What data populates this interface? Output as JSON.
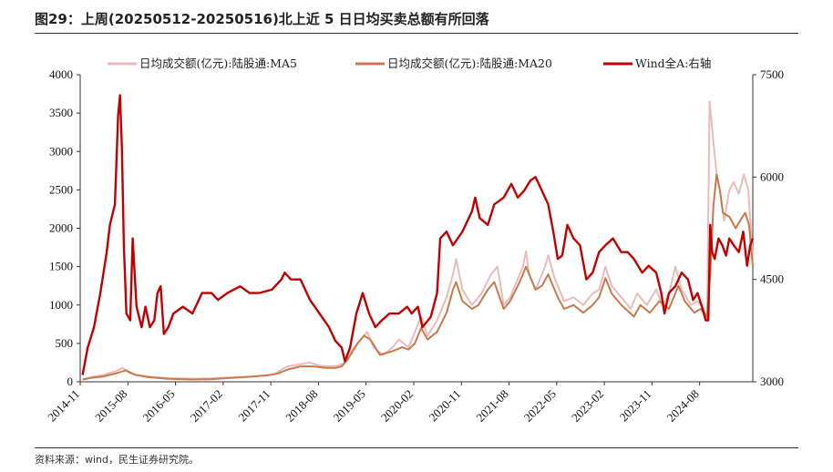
{
  "header": {
    "title": "图29：上周(20250512-20250516)北上近 5 日日均买卖总额有所回落"
  },
  "footer": {
    "source": "资料来源：wind，民生证券研究院。"
  },
  "chart_data": {
    "type": "line",
    "legend_position": "top",
    "grid": false,
    "x_ticks": [
      "2014-11",
      "2015-08",
      "2016-05",
      "2017-02",
      "2017-11",
      "2018-08",
      "2019-05",
      "2020-02",
      "2020-11",
      "2021-08",
      "2022-05",
      "2023-02",
      "2023-11",
      "2024-08"
    ],
    "y_left": {
      "ticks": [
        "0",
        "500",
        "1000",
        "1500",
        "2000",
        "2500",
        "3000",
        "3500",
        "4000"
      ],
      "range": [
        0,
        4000
      ]
    },
    "y_right": {
      "ticks": [
        "3000",
        "4500",
        "6000",
        "7500"
      ],
      "range": [
        3000,
        7500
      ]
    },
    "x_range": [
      2014.833,
      2025.42
    ],
    "series": [
      {
        "name": "日均成交额(亿元):陆股通:MA5",
        "axis": "left",
        "color": "#eab9b9",
        "points": [
          [
            2014.87,
            30
          ],
          [
            2015.0,
            60
          ],
          [
            2015.2,
            90
          ],
          [
            2015.4,
            140
          ],
          [
            2015.5,
            180
          ],
          [
            2015.6,
            120
          ],
          [
            2015.7,
            90
          ],
          [
            2015.9,
            70
          ],
          [
            2016.0,
            60
          ],
          [
            2016.3,
            45
          ],
          [
            2016.6,
            40
          ],
          [
            2016.9,
            45
          ],
          [
            2017.0,
            50
          ],
          [
            2017.3,
            60
          ],
          [
            2017.6,
            70
          ],
          [
            2017.9,
            100
          ],
          [
            2018.0,
            160
          ],
          [
            2018.1,
            200
          ],
          [
            2018.3,
            230
          ],
          [
            2018.45,
            250
          ],
          [
            2018.6,
            210
          ],
          [
            2018.75,
            200
          ],
          [
            2018.9,
            210
          ],
          [
            2019.0,
            250
          ],
          [
            2019.1,
            400
          ],
          [
            2019.25,
            550
          ],
          [
            2019.35,
            650
          ],
          [
            2019.45,
            450
          ],
          [
            2019.6,
            350
          ],
          [
            2019.75,
            450
          ],
          [
            2019.85,
            550
          ],
          [
            2020.0,
            450
          ],
          [
            2020.1,
            650
          ],
          [
            2020.2,
            850
          ],
          [
            2020.3,
            600
          ],
          [
            2020.45,
            800
          ],
          [
            2020.6,
            1100
          ],
          [
            2020.7,
            1400
          ],
          [
            2020.75,
            1600
          ],
          [
            2020.85,
            1200
          ],
          [
            2021.0,
            1000
          ],
          [
            2021.15,
            1150
          ],
          [
            2021.3,
            1400
          ],
          [
            2021.4,
            1500
          ],
          [
            2021.5,
            1000
          ],
          [
            2021.6,
            1100
          ],
          [
            2021.7,
            1300
          ],
          [
            2021.8,
            1500
          ],
          [
            2021.85,
            1700
          ],
          [
            2021.9,
            1400
          ],
          [
            2022.0,
            1200
          ],
          [
            2022.15,
            1500
          ],
          [
            2022.2,
            1650
          ],
          [
            2022.3,
            1350
          ],
          [
            2022.45,
            1050
          ],
          [
            2022.6,
            1100
          ],
          [
            2022.75,
            1000
          ],
          [
            2022.9,
            1150
          ],
          [
            2023.0,
            1200
          ],
          [
            2023.1,
            1500
          ],
          [
            2023.2,
            1250
          ],
          [
            2023.35,
            1100
          ],
          [
            2023.5,
            950
          ],
          [
            2023.6,
            1150
          ],
          [
            2023.75,
            1000
          ],
          [
            2023.9,
            1200
          ],
          [
            2024.0,
            1000
          ],
          [
            2024.1,
            1150
          ],
          [
            2024.2,
            1500
          ],
          [
            2024.3,
            1200
          ],
          [
            2024.45,
            1000
          ],
          [
            2024.55,
            1050
          ],
          [
            2024.65,
            950
          ],
          [
            2024.7,
            800
          ],
          [
            2024.74,
            3650
          ],
          [
            2024.78,
            3300
          ],
          [
            2024.85,
            2700
          ],
          [
            2024.9,
            2500
          ],
          [
            2024.97,
            2100
          ],
          [
            2025.05,
            2500
          ],
          [
            2025.12,
            2600
          ],
          [
            2025.2,
            2450
          ],
          [
            2025.28,
            2700
          ],
          [
            2025.35,
            2500
          ],
          [
            2025.42,
            1600
          ]
        ]
      },
      {
        "name": "日均成交额(亿元):陆股通:MA20",
        "axis": "left",
        "color": "#c8784a",
        "points": [
          [
            2014.87,
            30
          ],
          [
            2015.0,
            50
          ],
          [
            2015.2,
            70
          ],
          [
            2015.4,
            110
          ],
          [
            2015.55,
            150
          ],
          [
            2015.7,
            90
          ],
          [
            2015.9,
            60
          ],
          [
            2016.2,
            40
          ],
          [
            2016.6,
            30
          ],
          [
            2016.9,
            35
          ],
          [
            2017.2,
            50
          ],
          [
            2017.5,
            65
          ],
          [
            2017.8,
            85
          ],
          [
            2017.95,
            110
          ],
          [
            2018.1,
            160
          ],
          [
            2018.3,
            200
          ],
          [
            2018.5,
            200
          ],
          [
            2018.7,
            180
          ],
          [
            2018.85,
            180
          ],
          [
            2018.95,
            200
          ],
          [
            2019.05,
            300
          ],
          [
            2019.2,
            500
          ],
          [
            2019.3,
            600
          ],
          [
            2019.4,
            550
          ],
          [
            2019.55,
            350
          ],
          [
            2019.75,
            400
          ],
          [
            2019.9,
            450
          ],
          [
            2020.0,
            420
          ],
          [
            2020.1,
            500
          ],
          [
            2020.2,
            700
          ],
          [
            2020.3,
            550
          ],
          [
            2020.45,
            650
          ],
          [
            2020.6,
            900
          ],
          [
            2020.7,
            1200
          ],
          [
            2020.75,
            1300
          ],
          [
            2020.85,
            1050
          ],
          [
            2021.0,
            950
          ],
          [
            2021.1,
            1000
          ],
          [
            2021.25,
            1200
          ],
          [
            2021.35,
            1300
          ],
          [
            2021.5,
            950
          ],
          [
            2021.6,
            1050
          ],
          [
            2021.75,
            1300
          ],
          [
            2021.85,
            1500
          ],
          [
            2022.0,
            1200
          ],
          [
            2022.1,
            1250
          ],
          [
            2022.2,
            1400
          ],
          [
            2022.35,
            1100
          ],
          [
            2022.45,
            950
          ],
          [
            2022.6,
            1000
          ],
          [
            2022.75,
            900
          ],
          [
            2022.9,
            1000
          ],
          [
            2023.0,
            1100
          ],
          [
            2023.1,
            1350
          ],
          [
            2023.2,
            1150
          ],
          [
            2023.35,
            1000
          ],
          [
            2023.55,
            850
          ],
          [
            2023.65,
            1000
          ],
          [
            2023.8,
            900
          ],
          [
            2023.95,
            1050
          ],
          [
            2024.1,
            950
          ],
          [
            2024.25,
            1250
          ],
          [
            2024.35,
            1050
          ],
          [
            2024.5,
            900
          ],
          [
            2024.6,
            950
          ],
          [
            2024.7,
            850
          ],
          [
            2024.75,
            1400
          ],
          [
            2024.8,
            2300
          ],
          [
            2024.85,
            2700
          ],
          [
            2024.9,
            2500
          ],
          [
            2024.95,
            2200
          ],
          [
            2025.05,
            2150
          ],
          [
            2025.15,
            2000
          ],
          [
            2025.22,
            2100
          ],
          [
            2025.3,
            2200
          ],
          [
            2025.36,
            2050
          ],
          [
            2025.42,
            1500
          ]
        ]
      },
      {
        "name": "Wind全A:右轴",
        "axis": "right",
        "color": "#c00000",
        "points": [
          [
            2014.87,
            3100
          ],
          [
            2014.95,
            3500
          ],
          [
            2015.05,
            3800
          ],
          [
            2015.15,
            4300
          ],
          [
            2015.25,
            4900
          ],
          [
            2015.3,
            5300
          ],
          [
            2015.38,
            5600
          ],
          [
            2015.43,
            6900
          ],
          [
            2015.46,
            7200
          ],
          [
            2015.49,
            6400
          ],
          [
            2015.52,
            5000
          ],
          [
            2015.56,
            4000
          ],
          [
            2015.62,
            3900
          ],
          [
            2015.66,
            5100
          ],
          [
            2015.72,
            4100
          ],
          [
            2015.8,
            3800
          ],
          [
            2015.86,
            4100
          ],
          [
            2015.93,
            3800
          ],
          [
            2016.0,
            3900
          ],
          [
            2016.05,
            4300
          ],
          [
            2016.1,
            4400
          ],
          [
            2016.15,
            3700
          ],
          [
            2016.22,
            3800
          ],
          [
            2016.3,
            4000
          ],
          [
            2016.45,
            4100
          ],
          [
            2016.6,
            4000
          ],
          [
            2016.75,
            4300
          ],
          [
            2016.9,
            4300
          ],
          [
            2017.0,
            4200
          ],
          [
            2017.15,
            4300
          ],
          [
            2017.35,
            4400
          ],
          [
            2017.5,
            4300
          ],
          [
            2017.65,
            4300
          ],
          [
            2017.85,
            4350
          ],
          [
            2018.0,
            4500
          ],
          [
            2018.05,
            4600
          ],
          [
            2018.15,
            4500
          ],
          [
            2018.3,
            4500
          ],
          [
            2018.45,
            4200
          ],
          [
            2018.6,
            4000
          ],
          [
            2018.75,
            3800
          ],
          [
            2018.85,
            3600
          ],
          [
            2018.95,
            3500
          ],
          [
            2019.0,
            3300
          ],
          [
            2019.08,
            3500
          ],
          [
            2019.18,
            4000
          ],
          [
            2019.28,
            4300
          ],
          [
            2019.38,
            4000
          ],
          [
            2019.48,
            3800
          ],
          [
            2019.58,
            3900
          ],
          [
            2019.7,
            4000
          ],
          [
            2019.85,
            4000
          ],
          [
            2019.98,
            4100
          ],
          [
            2020.05,
            4000
          ],
          [
            2020.15,
            4100
          ],
          [
            2020.22,
            3800
          ],
          [
            2020.35,
            3950
          ],
          [
            2020.45,
            4300
          ],
          [
            2020.5,
            5100
          ],
          [
            2020.6,
            5200
          ],
          [
            2020.7,
            5000
          ],
          [
            2020.85,
            5200
          ],
          [
            2021.0,
            5500
          ],
          [
            2021.05,
            5700
          ],
          [
            2021.12,
            5400
          ],
          [
            2021.25,
            5300
          ],
          [
            2021.35,
            5600
          ],
          [
            2021.5,
            5700
          ],
          [
            2021.62,
            5900
          ],
          [
            2021.72,
            5700
          ],
          [
            2021.82,
            5800
          ],
          [
            2021.92,
            5950
          ],
          [
            2022.0,
            6000
          ],
          [
            2022.1,
            5800
          ],
          [
            2022.2,
            5600
          ],
          [
            2022.28,
            5200
          ],
          [
            2022.35,
            4800
          ],
          [
            2022.42,
            4850
          ],
          [
            2022.5,
            5300
          ],
          [
            2022.6,
            5100
          ],
          [
            2022.7,
            5000
          ],
          [
            2022.8,
            4500
          ],
          [
            2022.9,
            4600
          ],
          [
            2023.0,
            4900
          ],
          [
            2023.1,
            5000
          ],
          [
            2023.22,
            5100
          ],
          [
            2023.35,
            4900
          ],
          [
            2023.45,
            4900
          ],
          [
            2023.55,
            4800
          ],
          [
            2023.68,
            4600
          ],
          [
            2023.78,
            4700
          ],
          [
            2023.9,
            4600
          ],
          [
            2023.98,
            4300
          ],
          [
            2024.03,
            4000
          ],
          [
            2024.1,
            4300
          ],
          [
            2024.2,
            4400
          ],
          [
            2024.3,
            4600
          ],
          [
            2024.4,
            4500
          ],
          [
            2024.48,
            4200
          ],
          [
            2024.55,
            4300
          ],
          [
            2024.62,
            4100
          ],
          [
            2024.68,
            3900
          ],
          [
            2024.72,
            3900
          ],
          [
            2024.75,
            5300
          ],
          [
            2024.78,
            4900
          ],
          [
            2024.82,
            4800
          ],
          [
            2024.88,
            5100
          ],
          [
            2024.94,
            5000
          ],
          [
            2025.0,
            4850
          ],
          [
            2025.05,
            5100
          ],
          [
            2025.12,
            5000
          ],
          [
            2025.2,
            4900
          ],
          [
            2025.27,
            5200
          ],
          [
            2025.33,
            4700
          ],
          [
            2025.38,
            5000
          ],
          [
            2025.42,
            5100
          ]
        ]
      }
    ]
  }
}
